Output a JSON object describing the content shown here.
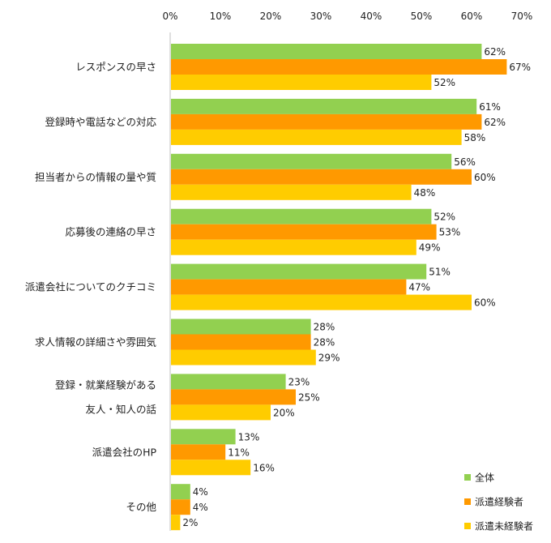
{
  "chart_data": {
    "type": "bar",
    "orientation": "horizontal",
    "xlim": [
      0,
      70
    ],
    "x_ticks": [
      0,
      10,
      20,
      30,
      40,
      50,
      60,
      70
    ],
    "x_tick_labels": [
      "0%",
      "10%",
      "20%",
      "30%",
      "40%",
      "50%",
      "60%",
      "70%"
    ],
    "categories": [
      [
        "レスポンスの早さ"
      ],
      [
        "登録時や電話などの対応"
      ],
      [
        "担当者からの情報の量や質"
      ],
      [
        "応募後の連絡の早さ"
      ],
      [
        "派遣会社についてのクチコミ"
      ],
      [
        "求人情報の詳細さや雰囲気"
      ],
      [
        "登録・就業経験がある",
        "友人・知人の話"
      ],
      [
        "派遣会社のHP"
      ],
      [
        "その他"
      ]
    ],
    "series": [
      {
        "name": "全体",
        "color": "#92d050",
        "values": [
          62,
          61,
          56,
          52,
          51,
          28,
          23,
          13,
          4
        ],
        "labels": [
          "62%",
          "61%",
          "56%",
          "52%",
          "51%",
          "28%",
          "23%",
          "13%",
          "4%"
        ]
      },
      {
        "name": "派遣経験者",
        "color": "#ff9900",
        "values": [
          67,
          62,
          60,
          53,
          47,
          28,
          25,
          11,
          4
        ],
        "labels": [
          "67%",
          "62%",
          "60%",
          "53%",
          "47%",
          "28%",
          "25%",
          "11%",
          "4%"
        ]
      },
      {
        "name": "派遣未経験者",
        "color": "#ffcc00",
        "values": [
          52,
          58,
          48,
          49,
          60,
          29,
          20,
          16,
          2
        ],
        "labels": [
          "52%",
          "58%",
          "48%",
          "49%",
          "60%",
          "29%",
          "20%",
          "16%",
          "2%"
        ]
      }
    ],
    "legend_position": "bottom-right",
    "axis_color": "#bfbfbf"
  }
}
